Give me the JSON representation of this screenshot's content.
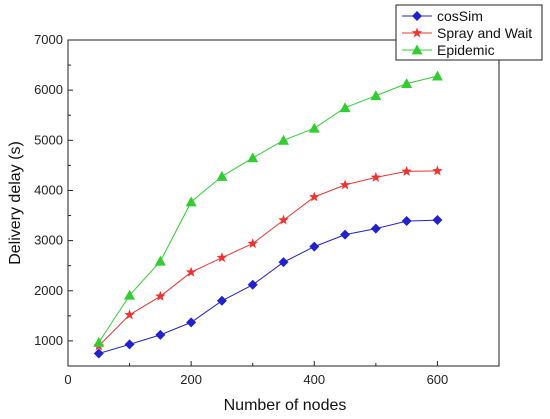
{
  "chart_data": {
    "type": "line",
    "title": "",
    "xlabel": "Number of nodes",
    "ylabel": "Delivery delay (s)",
    "xlim": [
      0,
      700
    ],
    "ylim": [
      500,
      7000
    ],
    "x_ticks": [
      "0",
      "200",
      "400",
      "600"
    ],
    "y_ticks": [
      "1000",
      "2000",
      "3000",
      "4000",
      "5000",
      "6000",
      "7000"
    ],
    "x": [
      50,
      100,
      150,
      200,
      250,
      300,
      350,
      400,
      450,
      500,
      550,
      600
    ],
    "grid": false,
    "legend_position": "top-right",
    "series": [
      {
        "name": "cosSim",
        "color": "#2222cc",
        "marker": "diamond",
        "values": [
          750,
          930,
          1120,
          1370,
          1800,
          2120,
          2570,
          2880,
          3120,
          3240,
          3390,
          3410
        ]
      },
      {
        "name": "Spray and Wait",
        "color": "#ee3333",
        "marker": "star",
        "values": [
          900,
          1520,
          1890,
          2370,
          2660,
          2940,
          3410,
          3870,
          4110,
          4260,
          4380,
          4390
        ]
      },
      {
        "name": "Epidemic",
        "color": "#33cc33",
        "marker": "triangle",
        "values": [
          970,
          1910,
          2590,
          3770,
          4280,
          4650,
          5000,
          5240,
          5650,
          5890,
          6130,
          6280
        ]
      }
    ]
  }
}
